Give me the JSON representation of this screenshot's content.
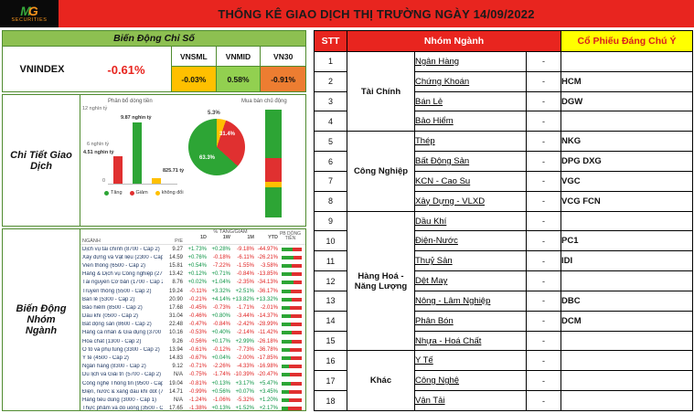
{
  "header": {
    "title": "THỐNG KÊ GIAO DỊCH THỊ TRƯỜNG NGÀY 14/09/2022",
    "logo": {
      "mark_left": "M",
      "mark_right": "G",
      "sub": "SECURITIES"
    }
  },
  "index_section": {
    "title": "Biến Động Chỉ Số",
    "main_index": {
      "name": "VNINDEX",
      "change": "-0.61%"
    },
    "sub_indices": [
      {
        "name": "VNSML",
        "change": "-0.03%",
        "bg": "#FFC000"
      },
      {
        "name": "VNMID",
        "change": "0.58%",
        "bg": "#92D050"
      },
      {
        "name": "VN30",
        "change": "-0.91%",
        "bg": "#ED7D31"
      }
    ]
  },
  "detail_section": {
    "title": "Chi Tiết Giao Dịch",
    "money_flow": {
      "title": "Phân bổ dòng tiền",
      "unit_max": 12,
      "y_ticks": [
        "12 nghìn tỷ",
        "6 nghìn tỷ",
        "0"
      ],
      "bars": [
        {
          "series": "Giảm",
          "label": "4.51 nghìn tỷ",
          "value": 4.51,
          "color": "#E03030"
        },
        {
          "series": "Tăng",
          "label": "9.87 nghìn tỷ",
          "value": 9.87,
          "color": "#2DA535"
        },
        {
          "series": "không đổi",
          "label": "825.71 tỷ",
          "value": 0.83,
          "color": "#FFC000"
        }
      ],
      "legend": [
        {
          "label": "Tăng",
          "color": "#2DA535"
        },
        {
          "label": "Giảm",
          "color": "#E03030"
        },
        {
          "label": "không đổi",
          "color": "#FFC000"
        }
      ]
    },
    "pie": {
      "slices": [
        {
          "label": "5.3%",
          "value": 5.3,
          "color": "#FFC000"
        },
        {
          "label": "31.4%",
          "value": 31.4,
          "color": "#E03030"
        },
        {
          "label": "63.3%",
          "value": 63.3,
          "color": "#2DA535"
        }
      ]
    },
    "active_trading": {
      "title": "Mua bán chủ động",
      "segments": [
        {
          "color": "#2DA535",
          "pct": 45
        },
        {
          "color": "#E03030",
          "pct": 22
        },
        {
          "color": "#FFC000",
          "pct": 5
        },
        {
          "color": "#2DA535",
          "pct": 28
        }
      ]
    }
  },
  "sector_section": {
    "title": "Biến Động Nhóm Ngành",
    "headers": {
      "name": "NGÀNH",
      "pe": "P/E",
      "group": "% TĂNG/GIẢM",
      "cols": [
        "1D",
        "1W",
        "1M",
        "YTD"
      ],
      "flow": "PB DÒNG TIỀN"
    },
    "rows": [
      {
        "name": "Dịch vụ tài chính (8700 - Cấp 2)",
        "pe": "9.27",
        "d": "+1.73%",
        "w": "+0.28%",
        "m": "-9.18%",
        "y": "-44.97%",
        "flow": [
          55,
          45
        ]
      },
      {
        "name": "Xây dựng và Vật liệu (2300 - Cấp 2)",
        "pe": "14.59",
        "d": "+0.76%",
        "w": "-0.18%",
        "m": "-6.11%",
        "y": "-26.21%",
        "flow": [
          60,
          40
        ]
      },
      {
        "name": "Viễn thông (6500 - Cấp 2)",
        "pe": "15.81",
        "d": "+0.54%",
        "w": "-7.22%",
        "m": "-1.55%",
        "y": "-3.58%",
        "flow": [
          48,
          52
        ]
      },
      {
        "name": "Hàng & Dịch vụ Công nghiệp (2700 - Cấp 2)",
        "pe": "13.42",
        "d": "+0.12%",
        "w": "+0.71%",
        "m": "-0.84%",
        "y": "-13.85%",
        "flow": [
          52,
          48
        ]
      },
      {
        "name": "Tài nguyên Cơ bản (1700 - Cấp 2)",
        "pe": "8.76",
        "d": "+0.02%",
        "w": "+1.04%",
        "m": "-2.35%",
        "y": "-34.13%",
        "flow": [
          58,
          42
        ]
      },
      {
        "name": "Truyền thông (5500 - Cấp 2)",
        "pe": "19.24",
        "d": "-0.11%",
        "w": "+3.32%",
        "m": "+2.51%",
        "y": "-36.17%",
        "flow": [
          45,
          55
        ]
      },
      {
        "name": "Bán lẻ (5300 - Cấp 2)",
        "pe": "20.90",
        "d": "-0.21%",
        "w": "+4.14%",
        "m": "+13.82%",
        "y": "+13.32%",
        "flow": [
          50,
          50
        ]
      },
      {
        "name": "Bảo hiểm (8500 - Cấp 2)",
        "pe": "17.68",
        "d": "-0.45%",
        "w": "-0.73%",
        "m": "-1.71%",
        "y": "-2.01%",
        "flow": [
          40,
          60
        ]
      },
      {
        "name": "Dầu khí (0500 - Cấp 2)",
        "pe": "31.04",
        "d": "-0.46%",
        "w": "+0.80%",
        "m": "-3.44%",
        "y": "-14.37%",
        "flow": [
          47,
          53
        ]
      },
      {
        "name": "Bất động sản (8600 - Cấp 2)",
        "pe": "22.48",
        "d": "-0.47%",
        "w": "-0.84%",
        "m": "-2.42%",
        "y": "-28.99%",
        "flow": [
          44,
          56
        ]
      },
      {
        "name": "Hàng cá nhân & Gia dụng (3700 - Cấp 2)",
        "pe": "10.16",
        "d": "-0.53%",
        "w": "+0.40%",
        "m": "-2.14%",
        "y": "-11.42%",
        "flow": [
          51,
          49
        ]
      },
      {
        "name": "Hóa chất (1300 - Cấp 2)",
        "pe": "9.26",
        "d": "-0.56%",
        "w": "+0.17%",
        "m": "+2.99%",
        "y": "-26.18%",
        "flow": [
          49,
          51
        ]
      },
      {
        "name": "Ô tô và phụ tùng (3300 - Cấp 2)",
        "pe": "13.94",
        "d": "-0.61%",
        "w": "-0.12%",
        "m": "-7.73%",
        "y": "-36.78%",
        "flow": [
          42,
          58
        ]
      },
      {
        "name": "Y tế (4500 - Cấp 2)",
        "pe": "14.83",
        "d": "-0.67%",
        "w": "+0.04%",
        "m": "-2.00%",
        "y": "-17.85%",
        "flow": [
          46,
          54
        ]
      },
      {
        "name": "Ngân hàng (8300 - Cấp 2)",
        "pe": "9.12",
        "d": "-0.71%",
        "w": "-2.26%",
        "m": "-4.33%",
        "y": "-16.98%",
        "flow": [
          38,
          62
        ]
      },
      {
        "name": "Du lịch và Giải trí (5700 - Cấp 2)",
        "pe": "N/A",
        "d": "-0.75%",
        "w": "-1.74%",
        "m": "-10.39%",
        "y": "-20.47%",
        "flow": [
          41,
          59
        ]
      },
      {
        "name": "Công nghệ Thông tin (9500 - Cấp 2)",
        "pe": "19.04",
        "d": "-0.81%",
        "w": "+0.13%",
        "m": "+3.17%",
        "y": "+5.47%",
        "flow": [
          44,
          56
        ]
      },
      {
        "name": "Điện, nước & xăng dầu khí đốt (7500 - Cấp 2)",
        "pe": "14.71",
        "d": "-0.99%",
        "w": "+0.56%",
        "m": "+0.07%",
        "y": "+3.45%",
        "flow": [
          36,
          64
        ]
      },
      {
        "name": "Hàng tiêu dùng (3000 - Cấp 1)",
        "pe": "N/A",
        "d": "-1.24%",
        "w": "-1.06%",
        "m": "-5.32%",
        "y": "+1.20%",
        "flow": [
          35,
          65
        ]
      },
      {
        "name": "Thực phẩm và đồ uống (3500 - Cấp 2)",
        "pe": "17.65",
        "d": "-1.38%",
        "w": "+0.13%",
        "m": "+1.52%",
        "y": "+2.17%",
        "flow": [
          33,
          67
        ]
      }
    ]
  },
  "watch_table": {
    "headers": {
      "stt": "STT",
      "group": "Nhóm Ngành",
      "stocks": "Cổ Phiếu Đáng Chú Ý"
    },
    "groups": [
      {
        "name": "Tài Chính",
        "span": 4
      },
      {
        "name": "Công Nghiệp",
        "span": 4
      },
      {
        "name": "Hàng Hoá - Năng Lượng",
        "span": 7
      },
      {
        "name": "Khác",
        "span": 3
      }
    ],
    "rows": [
      {
        "stt": "1",
        "sector": "Ngân Hàng",
        "dash": "-",
        "stocks": ""
      },
      {
        "stt": "2",
        "sector": "Chứng Khoán",
        "dash": "-",
        "stocks": "HCM"
      },
      {
        "stt": "3",
        "sector": "Bán Lẻ",
        "dash": "-",
        "stocks": "DGW"
      },
      {
        "stt": "4",
        "sector": "Bảo Hiểm",
        "dash": "-",
        "stocks": ""
      },
      {
        "stt": "5",
        "sector": "Thép",
        "dash": "-",
        "stocks": "NKG"
      },
      {
        "stt": "6",
        "sector": "Bất Động Sản",
        "dash": "-",
        "stocks": "DPG DXG"
      },
      {
        "stt": "7",
        "sector": "KCN - Cao Su",
        "dash": "-",
        "stocks": "VGC"
      },
      {
        "stt": "8",
        "sector": "Xây Dựng - VLXD",
        "dash": "-",
        "stocks": "VCG FCN"
      },
      {
        "stt": "9",
        "sector": "Dầu Khí",
        "dash": "-",
        "stocks": ""
      },
      {
        "stt": "10",
        "sector": "Điện-Nước",
        "dash": "-",
        "stocks": "PC1"
      },
      {
        "stt": "11",
        "sector": "Thuỷ Sản",
        "dash": "-",
        "stocks": "IDI"
      },
      {
        "stt": "12",
        "sector": "Dệt May",
        "dash": "-",
        "stocks": ""
      },
      {
        "stt": "13",
        "sector": "Nông - Lâm Nghiệp",
        "dash": "-",
        "stocks": "DBC"
      },
      {
        "stt": "14",
        "sector": "Phân Bón",
        "dash": "-",
        "stocks": "DCM"
      },
      {
        "stt": "15",
        "sector": "Nhựa - Hoá Chất",
        "dash": "-",
        "stocks": ""
      },
      {
        "stt": "16",
        "sector": "Y Tế",
        "dash": "-",
        "stocks": ""
      },
      {
        "stt": "17",
        "sector": "Công Nghệ",
        "dash": "-",
        "stocks": ""
      },
      {
        "stt": "18",
        "sector": "Vận Tải",
        "dash": "-",
        "stocks": ""
      }
    ]
  }
}
